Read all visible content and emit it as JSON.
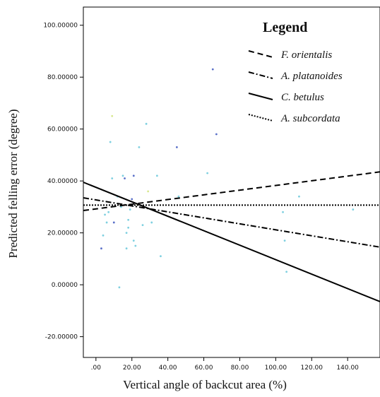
{
  "chart_data": {
    "type": "scatter",
    "title": "",
    "xlabel": "Vertical angle of backcut area (%)",
    "ylabel": "Predicted felling error (degree)",
    "xlim": [
      -7,
      158
    ],
    "ylim": [
      -28,
      107
    ],
    "x_ticks": [
      0,
      20,
      40,
      60,
      80,
      100,
      120,
      140
    ],
    "x_tick_labels": [
      ".00",
      "20.00",
      "40.00",
      "60.00",
      "80.00",
      "100.00",
      "120.00",
      "140.00"
    ],
    "y_ticks": [
      -20,
      0,
      20,
      40,
      60,
      80,
      100
    ],
    "y_tick_labels": [
      "-20.00000",
      "0.00000",
      "20.00000",
      "40.00000",
      "60.00000",
      "80.00000",
      "100.00000"
    ],
    "grid": false,
    "legend_title": "Legend",
    "legend_position": "top-right",
    "scatter_points": [
      {
        "x": 3,
        "y": 14,
        "color": "#5a70c8"
      },
      {
        "x": 4,
        "y": 19,
        "color": "#7fd0e0"
      },
      {
        "x": 5,
        "y": 27,
        "color": "#7fd0e0"
      },
      {
        "x": 6,
        "y": 24,
        "color": "#7fd0e0"
      },
      {
        "x": 7,
        "y": 28,
        "color": "#7fd0e0"
      },
      {
        "x": 8,
        "y": 55,
        "color": "#7fd0e0"
      },
      {
        "x": 9,
        "y": 65,
        "color": "#d8e890"
      },
      {
        "x": 9,
        "y": 41,
        "color": "#7fd0e0"
      },
      {
        "x": 10,
        "y": 24,
        "color": "#5a70c8"
      },
      {
        "x": 12,
        "y": 34,
        "color": "#7fd0e0"
      },
      {
        "x": 13,
        "y": -1,
        "color": "#7fd0e0"
      },
      {
        "x": 14,
        "y": 30,
        "color": "#7fd0e0"
      },
      {
        "x": 15,
        "y": 42,
        "color": "#7fd0e0"
      },
      {
        "x": 16,
        "y": 41,
        "color": "#5a70c8"
      },
      {
        "x": 17,
        "y": 14,
        "color": "#7fd0e0"
      },
      {
        "x": 17,
        "y": 20,
        "color": "#7fd0e0"
      },
      {
        "x": 18,
        "y": 22,
        "color": "#7fd0e0"
      },
      {
        "x": 18,
        "y": 25,
        "color": "#7fd0e0"
      },
      {
        "x": 19,
        "y": 29,
        "color": "#7fd0e0"
      },
      {
        "x": 20,
        "y": 33,
        "color": "#5a70c8"
      },
      {
        "x": 21,
        "y": 17,
        "color": "#7fd0e0"
      },
      {
        "x": 21,
        "y": 42,
        "color": "#5a70c8"
      },
      {
        "x": 22,
        "y": 15,
        "color": "#7fd0e0"
      },
      {
        "x": 23,
        "y": 31,
        "color": "#d8e890"
      },
      {
        "x": 24,
        "y": 53,
        "color": "#7fd0e0"
      },
      {
        "x": 26,
        "y": 23,
        "color": "#7fd0e0"
      },
      {
        "x": 28,
        "y": 62,
        "color": "#7fd0e0"
      },
      {
        "x": 29,
        "y": 36,
        "color": "#d8e890"
      },
      {
        "x": 31,
        "y": 24,
        "color": "#7fd0e0"
      },
      {
        "x": 34,
        "y": 42,
        "color": "#7fd0e0"
      },
      {
        "x": 36,
        "y": 11,
        "color": "#7fd0e0"
      },
      {
        "x": 45,
        "y": 53,
        "color": "#5a70c8"
      },
      {
        "x": 46,
        "y": 34,
        "color": "#7fd0e0"
      },
      {
        "x": 62,
        "y": 43,
        "color": "#7fd0e0"
      },
      {
        "x": 65,
        "y": 83,
        "color": "#5a70c8"
      },
      {
        "x": 67,
        "y": 58,
        "color": "#5a70c8"
      },
      {
        "x": 104,
        "y": 28,
        "color": "#7fd0e0"
      },
      {
        "x": 105,
        "y": 17,
        "color": "#7fd0e0"
      },
      {
        "x": 106,
        "y": 5,
        "color": "#7fd0e0"
      },
      {
        "x": 113,
        "y": 34,
        "color": "#7fd0e0"
      },
      {
        "x": 143,
        "y": 29,
        "color": "#7fd0e0"
      }
    ],
    "series": [
      {
        "name": "F.  orientalis",
        "dash": "8,5",
        "line": [
          {
            "x": -7,
            "y": 28.6
          },
          {
            "x": 158,
            "y": 43.5
          }
        ]
      },
      {
        "name": "A. platanoides",
        "dash": "8,3,2,3",
        "line": [
          {
            "x": -7,
            "y": 33.5
          },
          {
            "x": 158,
            "y": 14.5
          }
        ]
      },
      {
        "name": "C.  betulus",
        "dash": "",
        "line": [
          {
            "x": -7,
            "y": 39.5
          },
          {
            "x": 158,
            "y": -6.5
          }
        ]
      },
      {
        "name": "A.  subcordata",
        "dash": "2,2",
        "line": [
          {
            "x": -7,
            "y": 30.7
          },
          {
            "x": 158,
            "y": 30.7
          }
        ]
      }
    ]
  }
}
